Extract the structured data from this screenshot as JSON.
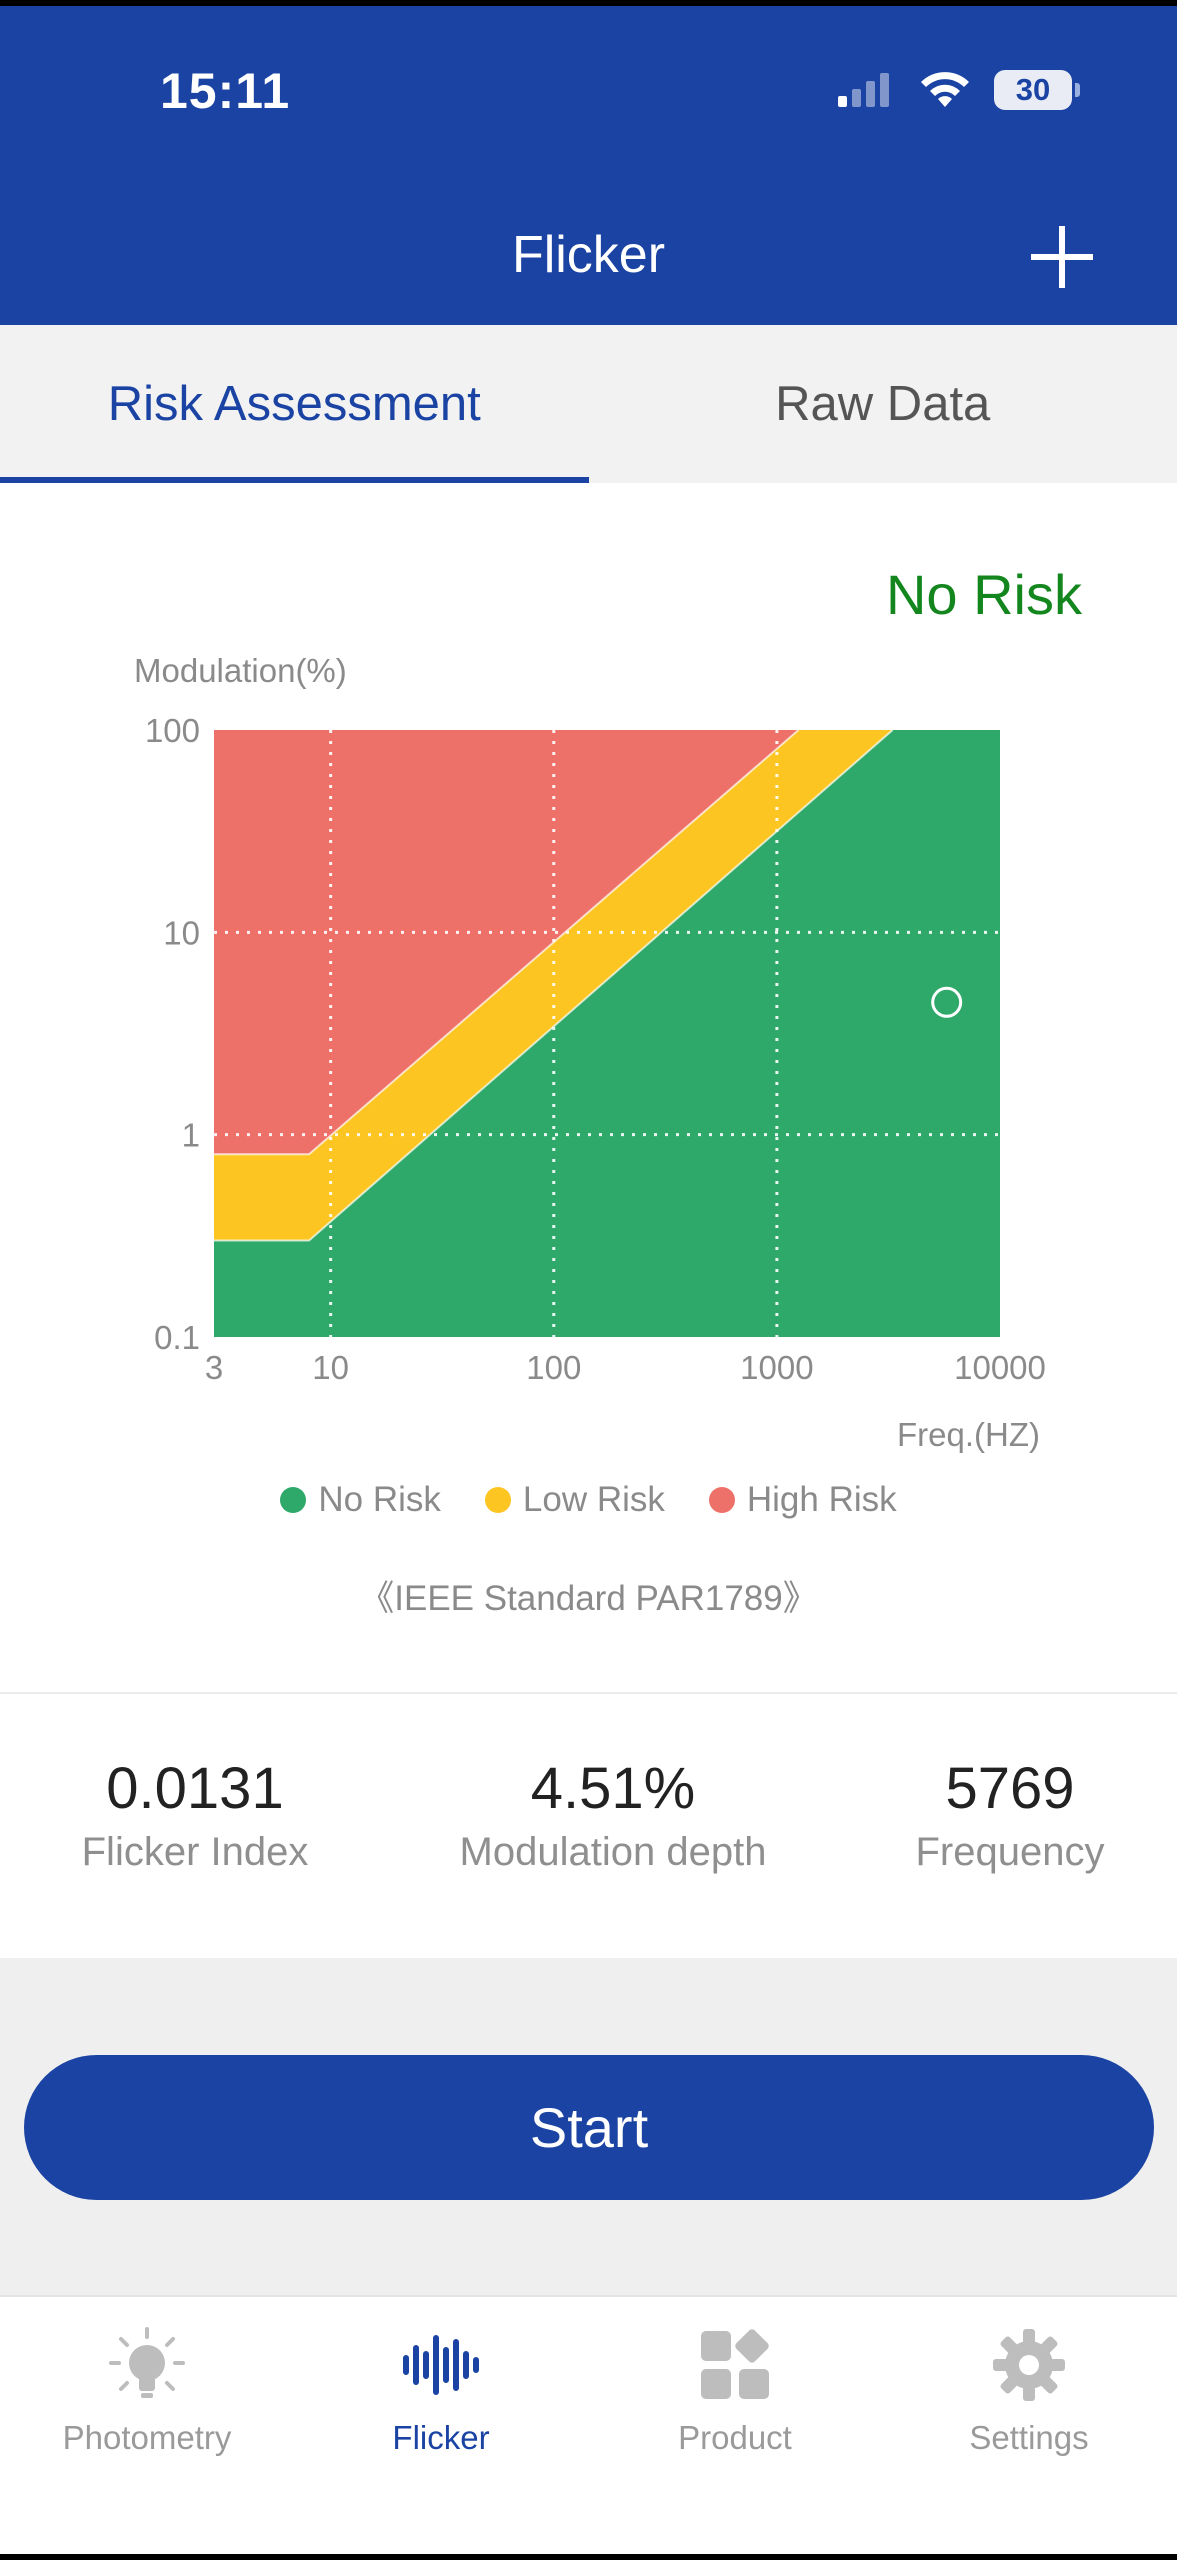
{
  "status_bar": {
    "time": "15:11",
    "battery": "30"
  },
  "nav": {
    "title": "Flicker",
    "add_icon": "plus-icon"
  },
  "tabs": [
    {
      "label": "Risk Assessment",
      "active": true
    },
    {
      "label": "Raw Data",
      "active": false
    }
  ],
  "risk_result": "No Risk",
  "chart_data": {
    "type": "scatter",
    "ylabel": "Modulation(%)",
    "xlabel": "Freq.(HZ)",
    "x_scale": "log",
    "y_scale": "log",
    "x_ticks": [
      "3",
      "10",
      "100",
      "1000",
      "10000"
    ],
    "y_ticks": [
      "100",
      "10",
      "1",
      "0.1"
    ],
    "xlim": [
      3,
      10000
    ],
    "ylim": [
      0.1,
      100
    ],
    "grid": true,
    "regions": [
      {
        "name": "High Risk",
        "color": "#ee7169"
      },
      {
        "name": "Low Risk",
        "color": "#fcc521"
      },
      {
        "name": "No Risk",
        "color": "#2ea96a"
      }
    ],
    "boundaries": {
      "low_risk_upper": [
        [
          3,
          0.8
        ],
        [
          8,
          0.8
        ],
        [
          1250,
          100
        ]
      ],
      "no_risk_upper": [
        [
          3,
          0.3
        ],
        [
          8,
          0.3
        ],
        [
          3300,
          100
        ]
      ]
    },
    "points": [
      {
        "x": 5769,
        "y": 4.51
      }
    ]
  },
  "legend": [
    {
      "label": "No Risk",
      "color": "#2ea96a"
    },
    {
      "label": "Low Risk",
      "color": "#fcc521"
    },
    {
      "label": "High Risk",
      "color": "#ee7169"
    }
  ],
  "standard": "《IEEE Standard PAR1789》",
  "metrics": [
    {
      "value": "0.0131",
      "label": "Flicker Index"
    },
    {
      "value": "4.51%",
      "label": "Modulation depth"
    },
    {
      "value": "5769",
      "label": "Frequency"
    }
  ],
  "start_label": "Start",
  "tabbar": [
    {
      "label": "Photometry",
      "icon": "bulb-icon",
      "active": false
    },
    {
      "label": "Flicker",
      "icon": "waveform-icon",
      "active": true
    },
    {
      "label": "Product",
      "icon": "grid-icon",
      "active": false
    },
    {
      "label": "Settings",
      "icon": "gear-icon",
      "active": false
    }
  ]
}
